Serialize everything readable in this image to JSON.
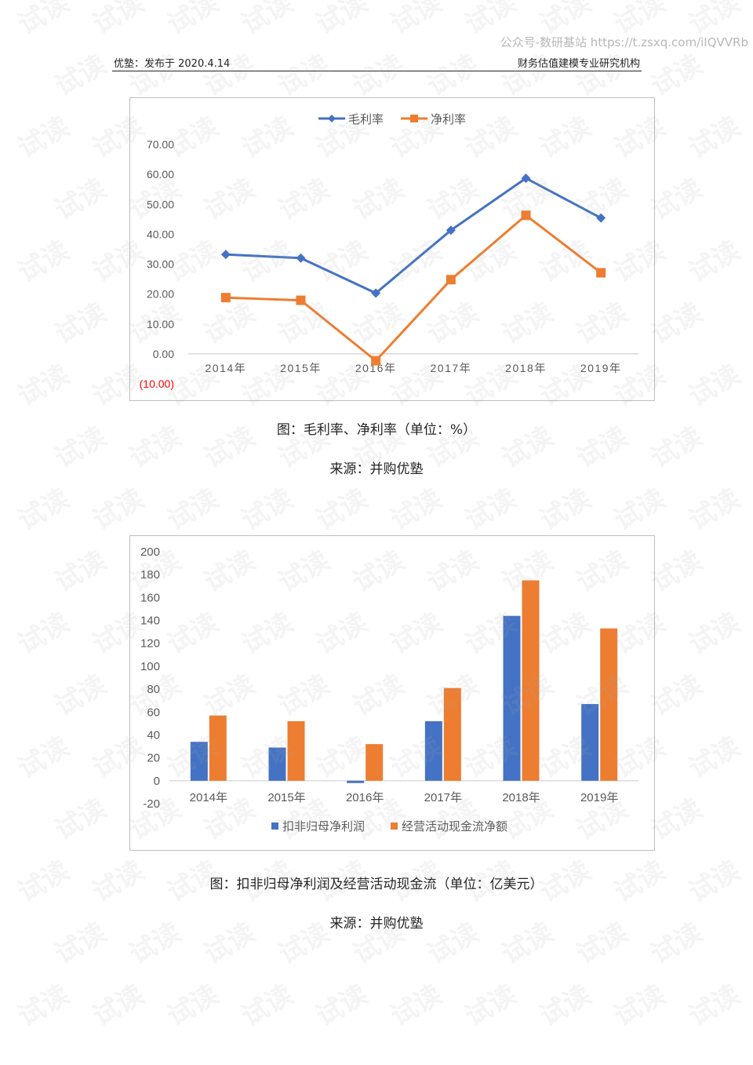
{
  "header": {
    "left": "优塾：发布于 2020.4.14",
    "right": "财务估值建模专业研究机构",
    "watermark_top": "公众号-数研基站 https://t.zsxq.com/iIQVVRb"
  },
  "watermark_text": "试读",
  "figure1": {
    "caption": "图：毛利率、净利率（单位：%）",
    "source": "来源：并购优塾"
  },
  "figure2": {
    "caption": "图：扣非归母净利润及经营活动现金流（单位：亿美元）",
    "source": "来源：并购优塾"
  },
  "chart_data": [
    {
      "type": "line",
      "categories": [
        "2014年",
        "2015年",
        "2016年",
        "2017年",
        "2018年",
        "2019年"
      ],
      "series": [
        {
          "name": "毛利率",
          "values": [
            33.2,
            32.0,
            20.3,
            41.3,
            58.7,
            45.4
          ],
          "color": "#4472C4",
          "marker": "diamond"
        },
        {
          "name": "净利率",
          "values": [
            18.8,
            17.9,
            -2.3,
            24.8,
            46.3,
            27.1
          ],
          "color": "#ED7D31",
          "marker": "square"
        }
      ],
      "ylim": [
        -10,
        70
      ],
      "yticks": [
        "(10.00)",
        "0.00",
        "10.00",
        "20.00",
        "30.00",
        "40.00",
        "50.00",
        "60.00",
        "70.00"
      ],
      "negative_tick_color": "#FF0000",
      "legend": "top-center",
      "grid": false
    },
    {
      "type": "bar",
      "categories": [
        "2014年",
        "2015年",
        "2016年",
        "2017年",
        "2018年",
        "2019年"
      ],
      "series": [
        {
          "name": "扣非归母净利润",
          "values": [
            34,
            29,
            -2,
            52,
            144,
            67
          ],
          "color": "#4472C4"
        },
        {
          "name": "经营活动现金流净额",
          "values": [
            57,
            52,
            32,
            81,
            175,
            133
          ],
          "color": "#ED7D31"
        }
      ],
      "ylim": [
        -20,
        200
      ],
      "yticks": [
        "-20",
        "0",
        "20",
        "40",
        "60",
        "80",
        "100",
        "120",
        "140",
        "160",
        "180",
        "200"
      ],
      "legend": "bottom-center",
      "grid": false
    }
  ]
}
